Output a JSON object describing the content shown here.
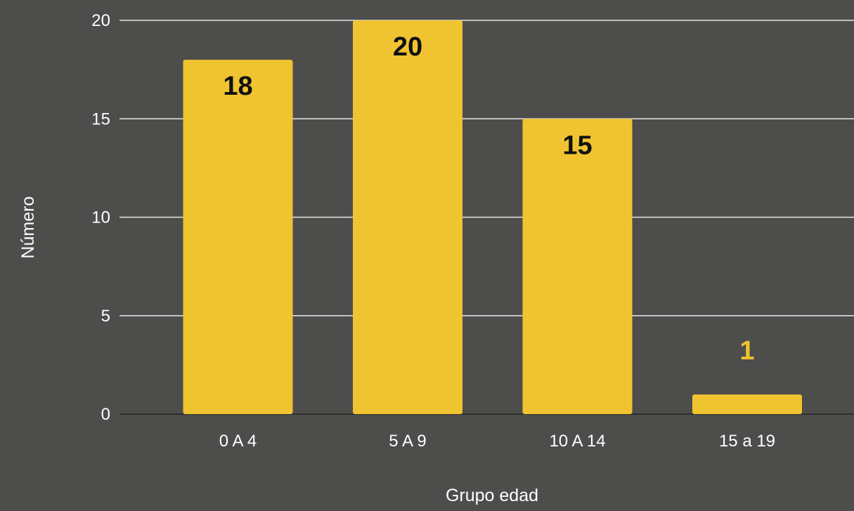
{
  "chart_data": {
    "type": "bar",
    "categories": [
      "0 A 4",
      "5 A 9",
      "10 A 14",
      "15 a 19"
    ],
    "values": [
      18,
      20,
      15,
      1
    ],
    "data_labels": [
      "18",
      "20",
      "15",
      "1"
    ],
    "xlabel": "Grupo edad",
    "ylabel": "Número",
    "ylim": [
      0,
      20
    ],
    "yticks": [
      "0",
      "5",
      "10",
      "15",
      "20"
    ],
    "grid": true,
    "colors": {
      "background": "#4d4d4b",
      "bar": "#f0c330",
      "label_inside": "#111111",
      "label_outside": "#f0c330",
      "grid": "#e6e6e6",
      "axis": "#2e2e2e"
    }
  }
}
